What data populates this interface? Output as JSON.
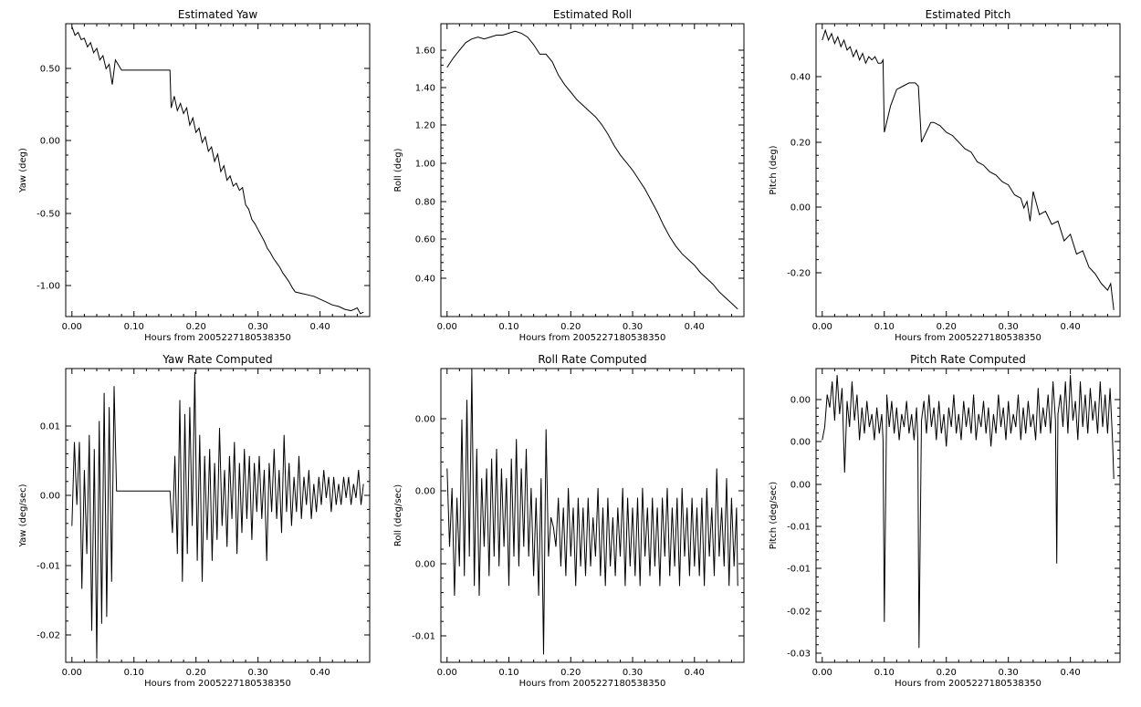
{
  "xlabel": "Hours from 2005227180538350",
  "x_ticks": [
    "0.00",
    "0.10",
    "0.20",
    "0.30",
    "0.40"
  ],
  "chart_data": [
    {
      "type": "line",
      "title": "Estimated Yaw",
      "ylabel": "Yaw (deg)",
      "xlabel": "Hours from 2005227180538350",
      "xlim": [
        -0.01,
        0.48
      ],
      "ylim": [
        -1.22,
        0.8
      ],
      "y_ticks": [
        "0.50",
        "0.00",
        "-0.50",
        "-1.00"
      ],
      "x": [
        0.0,
        0.005,
        0.01,
        0.015,
        0.02,
        0.025,
        0.03,
        0.035,
        0.04,
        0.045,
        0.05,
        0.055,
        0.06,
        0.065,
        0.07,
        0.08,
        0.1,
        0.12,
        0.14,
        0.158,
        0.16,
        0.165,
        0.17,
        0.175,
        0.18,
        0.185,
        0.19,
        0.195,
        0.2,
        0.205,
        0.21,
        0.215,
        0.22,
        0.225,
        0.23,
        0.235,
        0.24,
        0.245,
        0.25,
        0.255,
        0.26,
        0.265,
        0.27,
        0.275,
        0.28,
        0.285,
        0.29,
        0.295,
        0.3,
        0.305,
        0.31,
        0.315,
        0.32,
        0.325,
        0.33,
        0.335,
        0.34,
        0.345,
        0.35,
        0.355,
        0.36,
        0.37,
        0.38,
        0.39,
        0.4,
        0.41,
        0.42,
        0.43,
        0.44,
        0.45,
        0.46,
        0.465,
        0.47
      ],
      "y": [
        0.78,
        0.72,
        0.74,
        0.69,
        0.7,
        0.64,
        0.67,
        0.6,
        0.63,
        0.55,
        0.58,
        0.49,
        0.52,
        0.38,
        0.55,
        0.48,
        0.48,
        0.48,
        0.48,
        0.48,
        0.22,
        0.3,
        0.2,
        0.25,
        0.18,
        0.22,
        0.1,
        0.15,
        0.05,
        0.08,
        -0.02,
        0.02,
        -0.08,
        -0.05,
        -0.15,
        -0.1,
        -0.22,
        -0.18,
        -0.28,
        -0.25,
        -0.32,
        -0.3,
        -0.35,
        -0.33,
        -0.45,
        -0.48,
        -0.55,
        -0.58,
        -0.62,
        -0.66,
        -0.7,
        -0.75,
        -0.78,
        -0.82,
        -0.85,
        -0.88,
        -0.92,
        -0.95,
        -0.98,
        -1.02,
        -1.05,
        -1.06,
        -1.07,
        -1.08,
        -1.1,
        -1.12,
        -1.14,
        -1.15,
        -1.17,
        -1.18,
        -1.16,
        -1.2,
        -1.19
      ]
    },
    {
      "type": "line",
      "title": "Estimated Roll",
      "ylabel": "Roll (deg)",
      "xlabel": "Hours from 2005227180538350",
      "xlim": [
        -0.01,
        0.48
      ],
      "ylim": [
        0.2,
        1.74
      ],
      "y_ticks": [
        "1.60",
        "1.40",
        "1.20",
        "1.00",
        "0.80",
        "0.60",
        "0.40"
      ],
      "x": [
        0.0,
        0.01,
        0.02,
        0.03,
        0.04,
        0.05,
        0.06,
        0.07,
        0.08,
        0.09,
        0.1,
        0.11,
        0.12,
        0.13,
        0.14,
        0.15,
        0.16,
        0.17,
        0.18,
        0.19,
        0.2,
        0.21,
        0.22,
        0.23,
        0.24,
        0.25,
        0.26,
        0.27,
        0.28,
        0.29,
        0.3,
        0.31,
        0.32,
        0.33,
        0.34,
        0.35,
        0.36,
        0.37,
        0.38,
        0.39,
        0.4,
        0.41,
        0.42,
        0.43,
        0.44,
        0.45,
        0.46,
        0.47
      ],
      "y": [
        1.51,
        1.56,
        1.6,
        1.64,
        1.66,
        1.67,
        1.66,
        1.67,
        1.68,
        1.68,
        1.69,
        1.7,
        1.69,
        1.67,
        1.63,
        1.58,
        1.58,
        1.54,
        1.47,
        1.42,
        1.38,
        1.34,
        1.31,
        1.28,
        1.25,
        1.21,
        1.16,
        1.1,
        1.05,
        1.01,
        0.97,
        0.92,
        0.87,
        0.81,
        0.75,
        0.68,
        0.62,
        0.57,
        0.53,
        0.5,
        0.47,
        0.43,
        0.4,
        0.37,
        0.33,
        0.3,
        0.27,
        0.24
      ]
    },
    {
      "type": "line",
      "title": "Estimated Pitch",
      "ylabel": "Pitch (deg)",
      "xlabel": "Hours from 2005227180538350",
      "xlim": [
        -0.01,
        0.48
      ],
      "ylim": [
        -0.34,
        0.55
      ],
      "y_ticks": [
        "0.40",
        "0.20",
        "0.00",
        "-0.20"
      ],
      "x": [
        0.0,
        0.005,
        0.01,
        0.015,
        0.02,
        0.025,
        0.03,
        0.035,
        0.04,
        0.045,
        0.05,
        0.055,
        0.06,
        0.065,
        0.07,
        0.075,
        0.08,
        0.085,
        0.09,
        0.095,
        0.098,
        0.1,
        0.11,
        0.12,
        0.13,
        0.14,
        0.15,
        0.155,
        0.16,
        0.17,
        0.175,
        0.18,
        0.19,
        0.2,
        0.21,
        0.22,
        0.23,
        0.24,
        0.25,
        0.26,
        0.27,
        0.28,
        0.29,
        0.3,
        0.31,
        0.32,
        0.325,
        0.33,
        0.335,
        0.34,
        0.35,
        0.36,
        0.37,
        0.38,
        0.39,
        0.4,
        0.41,
        0.42,
        0.43,
        0.44,
        0.45,
        0.46,
        0.465,
        0.47
      ],
      "y": [
        0.5,
        0.53,
        0.5,
        0.52,
        0.49,
        0.51,
        0.48,
        0.5,
        0.47,
        0.48,
        0.45,
        0.47,
        0.44,
        0.46,
        0.43,
        0.45,
        0.44,
        0.45,
        0.43,
        0.43,
        0.44,
        0.22,
        0.3,
        0.35,
        0.36,
        0.37,
        0.37,
        0.36,
        0.19,
        0.23,
        0.25,
        0.25,
        0.24,
        0.22,
        0.21,
        0.19,
        0.17,
        0.16,
        0.13,
        0.12,
        0.1,
        0.09,
        0.07,
        0.06,
        0.03,
        0.02,
        -0.01,
        0.01,
        -0.05,
        0.04,
        -0.03,
        -0.02,
        -0.06,
        -0.05,
        -0.11,
        -0.09,
        -0.15,
        -0.14,
        -0.19,
        -0.21,
        -0.24,
        -0.26,
        -0.24,
        -0.32
      ]
    },
    {
      "type": "line",
      "title": "Yaw Rate Computed",
      "ylabel": "Yaw (deg/sec)",
      "xlabel": "Hours from 2005227180538350",
      "xlim": [
        -0.01,
        0.48
      ],
      "ylim": [
        -0.0245,
        0.0175
      ],
      "y_ticks": [
        "0.01",
        "0.00",
        "-0.01",
        "-0.02"
      ],
      "x": [
        0.0,
        0.004,
        0.008,
        0.012,
        0.016,
        0.02,
        0.024,
        0.028,
        0.032,
        0.036,
        0.04,
        0.044,
        0.048,
        0.052,
        0.056,
        0.06,
        0.064,
        0.068,
        0.072,
        0.08,
        0.1,
        0.12,
        0.14,
        0.158,
        0.162,
        0.166,
        0.17,
        0.174,
        0.178,
        0.182,
        0.186,
        0.19,
        0.194,
        0.198,
        0.202,
        0.206,
        0.21,
        0.214,
        0.218,
        0.222,
        0.226,
        0.23,
        0.234,
        0.238,
        0.242,
        0.246,
        0.25,
        0.254,
        0.258,
        0.262,
        0.266,
        0.27,
        0.274,
        0.278,
        0.282,
        0.286,
        0.29,
        0.294,
        0.298,
        0.302,
        0.306,
        0.31,
        0.314,
        0.318,
        0.322,
        0.326,
        0.33,
        0.334,
        0.338,
        0.342,
        0.346,
        0.35,
        0.354,
        0.358,
        0.362,
        0.366,
        0.37,
        0.374,
        0.378,
        0.382,
        0.386,
        0.39,
        0.394,
        0.398,
        0.402,
        0.406,
        0.41,
        0.414,
        0.418,
        0.422,
        0.426,
        0.43,
        0.434,
        0.438,
        0.442,
        0.446,
        0.45,
        0.454,
        0.458,
        0.462,
        0.466,
        0.47
      ],
      "y": [
        -0.005,
        0.007,
        -0.002,
        0.007,
        -0.014,
        0.003,
        -0.009,
        0.008,
        -0.02,
        0.006,
        -0.024,
        0.01,
        -0.019,
        0.014,
        -0.018,
        0.012,
        -0.013,
        0.015,
        0.0,
        0.0,
        0.0,
        0.0,
        0.0,
        0.0,
        -0.006,
        0.005,
        -0.009,
        0.013,
        -0.013,
        0.011,
        -0.009,
        0.012,
        -0.005,
        0.017,
        -0.01,
        0.008,
        -0.013,
        0.005,
        -0.007,
        0.006,
        -0.01,
        0.004,
        -0.007,
        0.009,
        -0.005,
        0.003,
        -0.008,
        0.005,
        -0.004,
        0.007,
        -0.009,
        0.004,
        -0.006,
        0.006,
        -0.004,
        0.005,
        -0.007,
        0.004,
        -0.003,
        0.005,
        -0.004,
        0.003,
        -0.01,
        0.004,
        -0.003,
        0.006,
        -0.004,
        0.003,
        -0.006,
        0.008,
        -0.003,
        0.004,
        -0.005,
        0.002,
        -0.003,
        0.005,
        -0.004,
        0.002,
        -0.002,
        0.003,
        -0.004,
        0.001,
        -0.003,
        0.002,
        -0.002,
        0.003,
        -0.001,
        0.002,
        -0.003,
        0.002,
        -0.002,
        0.001,
        -0.002,
        0.002,
        -0.001,
        0.002,
        -0.002,
        0.001,
        -0.001,
        0.003,
        -0.002,
        0.001
      ]
    },
    {
      "type": "line",
      "title": "Roll Rate Computed",
      "ylabel": "Roll (deg/sec)",
      "xlabel": "Hours from 2005227180538350",
      "xlim": [
        -0.01,
        0.48
      ],
      "ylim": [
        -0.0138,
        0.0162
      ],
      "y_ticks": [
        "0.00",
        "0.00",
        "0.00",
        "-0.01"
      ],
      "x": [
        0.0,
        0.004,
        0.008,
        0.012,
        0.016,
        0.02,
        0.024,
        0.028,
        0.032,
        0.036,
        0.04,
        0.044,
        0.048,
        0.052,
        0.056,
        0.06,
        0.064,
        0.068,
        0.072,
        0.076,
        0.08,
        0.084,
        0.088,
        0.092,
        0.096,
        0.1,
        0.104,
        0.108,
        0.112,
        0.116,
        0.12,
        0.124,
        0.128,
        0.132,
        0.136,
        0.14,
        0.144,
        0.148,
        0.152,
        0.156,
        0.16,
        0.164,
        0.168,
        0.172,
        0.176,
        0.18,
        0.184,
        0.188,
        0.192,
        0.196,
        0.2,
        0.204,
        0.208,
        0.212,
        0.216,
        0.22,
        0.224,
        0.228,
        0.232,
        0.236,
        0.24,
        0.244,
        0.248,
        0.252,
        0.256,
        0.26,
        0.264,
        0.268,
        0.272,
        0.276,
        0.28,
        0.284,
        0.288,
        0.292,
        0.296,
        0.3,
        0.304,
        0.308,
        0.312,
        0.316,
        0.32,
        0.324,
        0.328,
        0.332,
        0.336,
        0.34,
        0.344,
        0.348,
        0.352,
        0.356,
        0.36,
        0.364,
        0.368,
        0.372,
        0.376,
        0.38,
        0.384,
        0.388,
        0.392,
        0.396,
        0.4,
        0.404,
        0.408,
        0.412,
        0.416,
        0.42,
        0.424,
        0.428,
        0.432,
        0.436,
        0.44,
        0.444,
        0.448,
        0.452,
        0.456,
        0.46,
        0.464,
        0.468,
        0.47
      ],
      "y": [
        0.006,
        -0.002,
        0.004,
        -0.007,
        0.003,
        -0.004,
        0.011,
        -0.005,
        0.013,
        -0.003,
        0.016,
        -0.006,
        0.008,
        -0.007,
        0.005,
        -0.002,
        0.006,
        -0.005,
        0.007,
        -0.003,
        0.008,
        -0.004,
        0.006,
        -0.002,
        0.005,
        -0.006,
        0.007,
        -0.003,
        0.009,
        -0.004,
        0.006,
        -0.002,
        0.008,
        -0.003,
        0.004,
        -0.005,
        0.003,
        -0.007,
        0.005,
        -0.013,
        0.01,
        -0.003,
        0.001,
        0.0,
        -0.002,
        0.003,
        -0.004,
        0.002,
        -0.005,
        0.004,
        -0.003,
        0.002,
        -0.006,
        0.003,
        -0.004,
        0.002,
        -0.005,
        0.003,
        -0.004,
        0.001,
        -0.003,
        0.004,
        -0.005,
        0.002,
        -0.006,
        0.003,
        -0.004,
        0.001,
        -0.005,
        0.002,
        -0.003,
        0.004,
        -0.006,
        0.003,
        -0.004,
        0.002,
        -0.005,
        0.003,
        -0.006,
        0.004,
        -0.003,
        0.002,
        -0.005,
        0.003,
        -0.004,
        0.002,
        -0.006,
        0.003,
        -0.003,
        0.004,
        -0.005,
        0.002,
        -0.004,
        0.003,
        -0.006,
        0.004,
        -0.003,
        0.002,
        -0.005,
        0.003,
        -0.004,
        0.002,
        -0.005,
        0.003,
        -0.006,
        0.004,
        -0.003,
        0.002,
        -0.005,
        0.006,
        -0.003,
        0.002,
        -0.004,
        0.005,
        -0.006,
        0.003,
        -0.004,
        0.002,
        -0.006
      ]
    },
    {
      "type": "line",
      "title": "Pitch Rate Computed",
      "ylabel": "Pitch (deg/sec)",
      "xlabel": "Hours from 2005227180538350",
      "xlim": [
        -0.01,
        0.48
      ],
      "ylim": [
        -0.0322,
        0.013
      ],
      "y_ticks": [
        "0.00",
        "0.00",
        "0.00",
        "0.00",
        "-0.01",
        "-0.01",
        "-0.02",
        "-0.02",
        "-0.03"
      ],
      "x": [
        0.0,
        0.004,
        0.008,
        0.012,
        0.016,
        0.02,
        0.024,
        0.028,
        0.032,
        0.036,
        0.04,
        0.044,
        0.048,
        0.052,
        0.056,
        0.06,
        0.064,
        0.068,
        0.072,
        0.076,
        0.08,
        0.084,
        0.088,
        0.092,
        0.096,
        0.098,
        0.1,
        0.104,
        0.108,
        0.112,
        0.116,
        0.12,
        0.124,
        0.128,
        0.132,
        0.136,
        0.14,
        0.144,
        0.148,
        0.152,
        0.154,
        0.156,
        0.16,
        0.164,
        0.168,
        0.172,
        0.176,
        0.18,
        0.184,
        0.188,
        0.192,
        0.196,
        0.2,
        0.204,
        0.208,
        0.212,
        0.216,
        0.22,
        0.224,
        0.228,
        0.232,
        0.236,
        0.24,
        0.244,
        0.248,
        0.252,
        0.256,
        0.26,
        0.264,
        0.268,
        0.272,
        0.276,
        0.28,
        0.284,
        0.288,
        0.292,
        0.296,
        0.3,
        0.304,
        0.308,
        0.312,
        0.316,
        0.32,
        0.324,
        0.328,
        0.332,
        0.336,
        0.34,
        0.344,
        0.348,
        0.352,
        0.356,
        0.36,
        0.364,
        0.368,
        0.372,
        0.376,
        0.378,
        0.38,
        0.384,
        0.388,
        0.392,
        0.396,
        0.4,
        0.404,
        0.408,
        0.412,
        0.416,
        0.42,
        0.424,
        0.428,
        0.432,
        0.436,
        0.44,
        0.444,
        0.448,
        0.452,
        0.456,
        0.46,
        0.464,
        0.468,
        0.47
      ],
      "y": [
        0.002,
        0.004,
        0.009,
        0.007,
        0.011,
        0.005,
        0.012,
        0.006,
        0.01,
        -0.003,
        0.008,
        0.004,
        0.011,
        0.005,
        0.009,
        0.002,
        0.007,
        0.003,
        0.008,
        0.004,
        0.006,
        0.002,
        0.007,
        0.003,
        0.006,
        0.002,
        -0.026,
        0.009,
        0.004,
        0.008,
        0.003,
        0.007,
        0.002,
        0.006,
        0.004,
        0.008,
        0.003,
        0.006,
        0.002,
        0.007,
        0.002,
        -0.03,
        0.005,
        0.008,
        0.003,
        0.009,
        0.004,
        0.007,
        0.002,
        0.008,
        0.003,
        0.006,
        0.001,
        0.007,
        0.004,
        0.009,
        0.003,
        0.006,
        0.002,
        0.008,
        0.004,
        0.007,
        0.003,
        0.009,
        0.002,
        0.006,
        0.004,
        0.008,
        0.003,
        0.007,
        0.001,
        0.006,
        0.003,
        0.009,
        0.004,
        0.007,
        0.002,
        0.008,
        0.003,
        0.006,
        0.004,
        0.009,
        0.002,
        0.007,
        0.003,
        0.008,
        0.004,
        0.006,
        0.002,
        0.01,
        0.003,
        0.007,
        0.004,
        0.009,
        0.003,
        0.011,
        0.005,
        -0.017,
        0.006,
        0.009,
        0.004,
        0.011,
        0.003,
        0.012,
        0.005,
        0.008,
        0.002,
        0.011,
        0.004,
        0.009,
        0.003,
        0.01,
        0.005,
        0.008,
        0.003,
        0.011,
        0.004,
        0.009,
        0.003,
        0.01,
        0.002,
        -0.004
      ]
    }
  ]
}
